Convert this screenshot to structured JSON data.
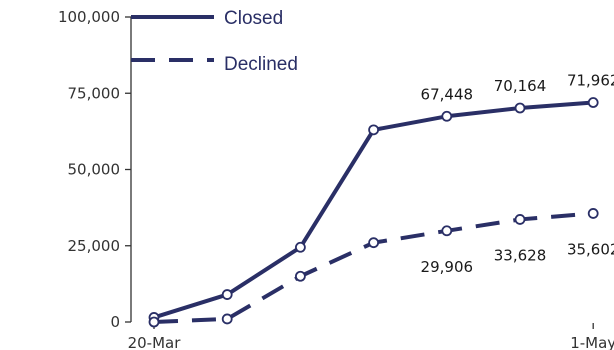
{
  "chart_data": {
    "type": "line",
    "title": "",
    "xlabel": "",
    "ylabel": "",
    "ylim": [
      0,
      100000
    ],
    "yticks": [
      0,
      25000,
      50000,
      75000,
      100000
    ],
    "ytick_labels": [
      "0",
      "25,000",
      "50,000",
      "75,000",
      "100,000"
    ],
    "xtick_labels": [
      "20-Mar",
      "1-May"
    ],
    "x": [
      0,
      1,
      2,
      3,
      4,
      5,
      6
    ],
    "legend_position": "top-left",
    "grid": false,
    "colors": {
      "series": "#2a2f66",
      "marker_fill": "#ffffff",
      "axis": "#333333"
    },
    "series": [
      {
        "name": "Closed",
        "style": "solid",
        "values": [
          1500,
          9000,
          24500,
          63000,
          67448,
          70164,
          71962
        ],
        "labels": [
          "",
          "",
          "",
          "",
          "67,448",
          "70,164",
          "71,962"
        ]
      },
      {
        "name": "Declined",
        "style": "dashed",
        "values": [
          0,
          1000,
          15000,
          26000,
          29906,
          33628,
          35602
        ],
        "labels": [
          "",
          "",
          "",
          "",
          "29,906",
          "33,628",
          "35,602"
        ]
      }
    ]
  }
}
